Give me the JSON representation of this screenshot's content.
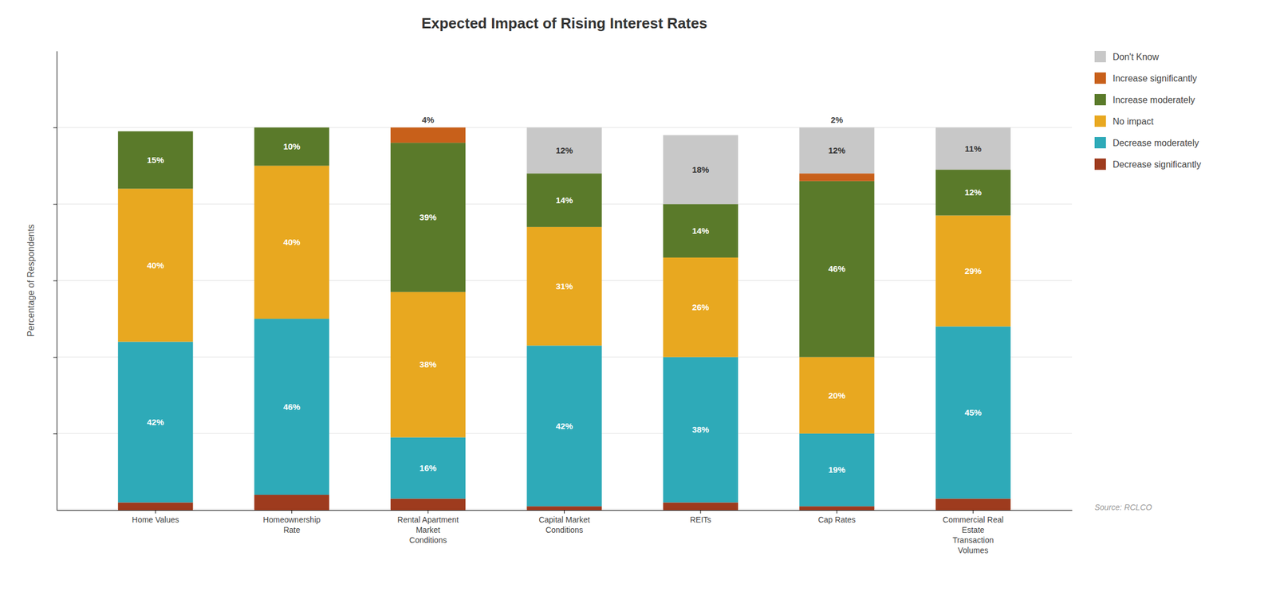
{
  "chart_data": {
    "type": "bar",
    "title": "Expected Impact of Rising Interest Rates",
    "ylabel": "Percentage of Respondents",
    "annotations": [
      "Source: RCLCO"
    ],
    "categories": [
      "Home Values",
      "Homeownership\nRate",
      "Rental Apartment\nMarket\nConditions",
      "Capital Market\nConditions",
      "REITs",
      "Cap Rates",
      "Commercial Real\nEstate\nTransaction\nVolumes"
    ],
    "series": [
      {
        "name": "Decrease significantly",
        "color": "#9e3b1e",
        "values": [
          2,
          4,
          3,
          1,
          2,
          1,
          3
        ],
        "value_labels": [
          null,
          null,
          null,
          null,
          null,
          null,
          null
        ]
      },
      {
        "name": "Decrease moderately",
        "color": "#2eaab8",
        "values": [
          42,
          46,
          16,
          42,
          38,
          19,
          45
        ],
        "value_labels": [
          "42%",
          "46%",
          "16%",
          "42%",
          "38%",
          "19%",
          "45%"
        ]
      },
      {
        "name": "No impact",
        "color": "#e8a820",
        "values": [
          40,
          40,
          38,
          31,
          26,
          20,
          29
        ],
        "value_labels": [
          "40%",
          "40%",
          "38%",
          "31%",
          "26%",
          "20%",
          "29%"
        ]
      },
      {
        "name": "Increase moderately",
        "color": "#5a7a2a",
        "values": [
          15,
          10,
          39,
          14,
          14,
          46,
          12
        ],
        "value_labels": [
          "15%",
          "10%",
          "39%",
          "14%",
          "14%",
          "46%",
          "12%"
        ]
      },
      {
        "name": "Increase significantly",
        "color": "#c8601a",
        "values": [
          0,
          0,
          4,
          0,
          0,
          2,
          0
        ],
        "value_labels": [
          null,
          null,
          "4%",
          null,
          null,
          "2%",
          null
        ]
      },
      {
        "name": "Don't Know",
        "color": "#c8c8c8",
        "values": [
          0,
          0,
          0,
          12,
          18,
          12,
          11
        ],
        "value_labels": [
          null,
          null,
          null,
          "12%",
          "18%",
          "12%",
          "11%"
        ]
      }
    ],
    "stacked": true,
    "ylim": [
      0,
      120
    ],
    "yticks": [
      20,
      40,
      60,
      80,
      100
    ],
    "grid": true,
    "legend": "right",
    "data_labels": true,
    "tick_labels": "x"
  }
}
